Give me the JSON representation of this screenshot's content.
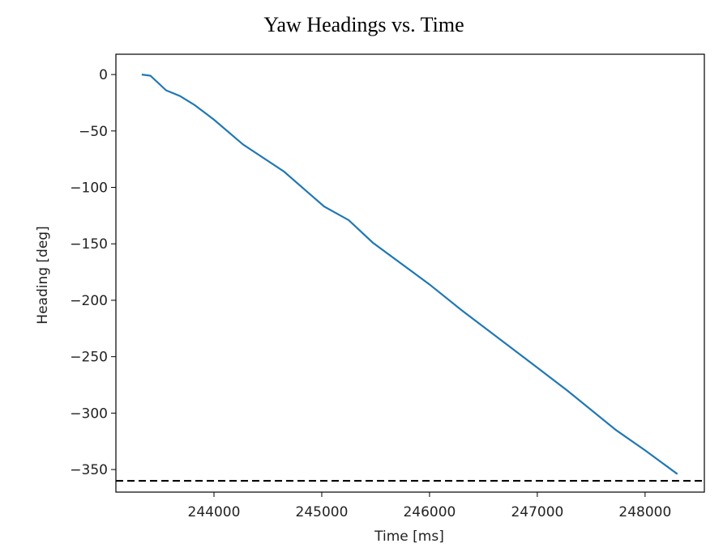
{
  "chart_data": {
    "type": "line",
    "title": "Yaw Headings vs. Time",
    "x_label": "Time [ms]",
    "y_label": "Heading [deg]",
    "x": [
      243330,
      243410,
      243556,
      243684,
      243820,
      244000,
      244270,
      244650,
      245023,
      245250,
      245474,
      246000,
      246300,
      246977,
      247278,
      247730,
      248000,
      248143,
      248300
    ],
    "series": [
      {
        "color": "#1f77b4",
        "values": [
          0,
          -1,
          -14,
          -19,
          -27,
          -40,
          -62,
          -86,
          -117,
          -129,
          -149,
          -186,
          -209,
          -258,
          -280,
          -315,
          -333,
          -343,
          -354
        ]
      }
    ],
    "hline": -360,
    "hline_color": "#000000",
    "xlim": [
      243090,
      248550
    ],
    "ylim": [
      -370,
      18
    ],
    "xticks": [
      244000,
      245000,
      246000,
      247000,
      248000
    ],
    "yticks": [
      0,
      -50,
      -100,
      -150,
      -200,
      -250,
      -300,
      -350
    ],
    "grid": false
  }
}
